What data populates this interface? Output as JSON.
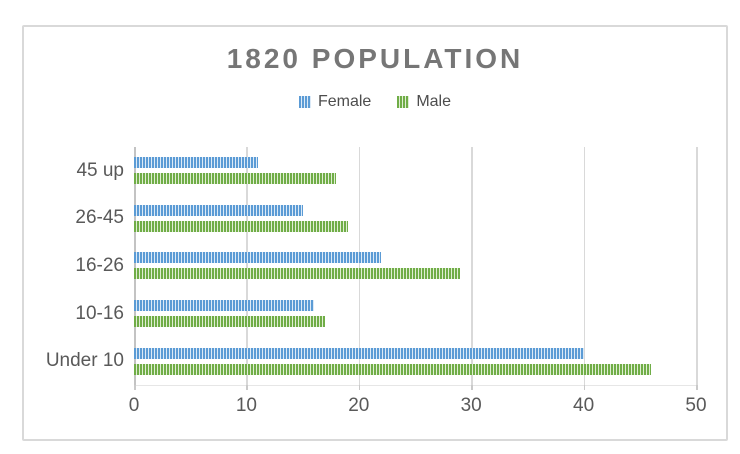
{
  "chart": {
    "title": "1820 POPULATION",
    "colors": {
      "title_text": "#767676",
      "axis_text": "#595959",
      "gridline": "#d9d9d9",
      "frame_border": "#d9d9d9"
    }
  },
  "chart_data": {
    "type": "bar",
    "orientation": "horizontal",
    "title": "1820 POPULATION",
    "categories": [
      "45 up",
      "26-45",
      "16-26",
      "10-16",
      "Under 10"
    ],
    "series": [
      {
        "name": "Female",
        "color": "#5b9bd5",
        "stripe_light": "#dceaf7",
        "values": [
          11,
          15,
          22,
          16,
          40
        ]
      },
      {
        "name": "Male",
        "color": "#70ad47",
        "stripe_light": "#e0eed4",
        "values": [
          18,
          19,
          29,
          17,
          46
        ]
      }
    ],
    "xlabel": "",
    "ylabel": "",
    "xlim": [
      0,
      50
    ],
    "xticks": [
      0,
      10,
      20,
      30,
      40,
      50
    ],
    "grid": true,
    "legend_position": "top",
    "fill_style": "vertical-stripe-pattern"
  }
}
